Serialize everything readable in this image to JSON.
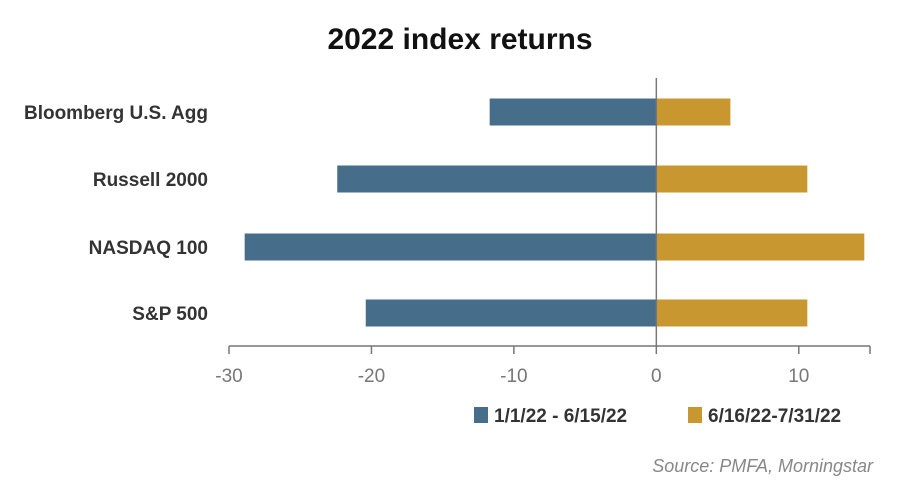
{
  "chart_data": {
    "type": "bar",
    "orientation": "horizontal",
    "title": "2022 index returns",
    "categories": [
      "Bloomberg U.S. Agg",
      "Russell 2000",
      "NASDAQ 100",
      "S&P 500"
    ],
    "series": [
      {
        "name": "1/1/22 - 6/15/22",
        "color": "#466d8a",
        "values": [
          -11.7,
          -22.4,
          -28.9,
          -20.4
        ]
      },
      {
        "name": "6/16/22-7/31/22",
        "color": "#c99730",
        "values": [
          5.2,
          10.6,
          14.6,
          10.6
        ]
      }
    ],
    "xlim": [
      -30,
      15
    ],
    "xticks": [
      -30,
      -20,
      -10,
      0,
      10
    ],
    "grid": false,
    "legend_position": "bottom-right",
    "source": "Source: PMFA, Morningstar"
  }
}
